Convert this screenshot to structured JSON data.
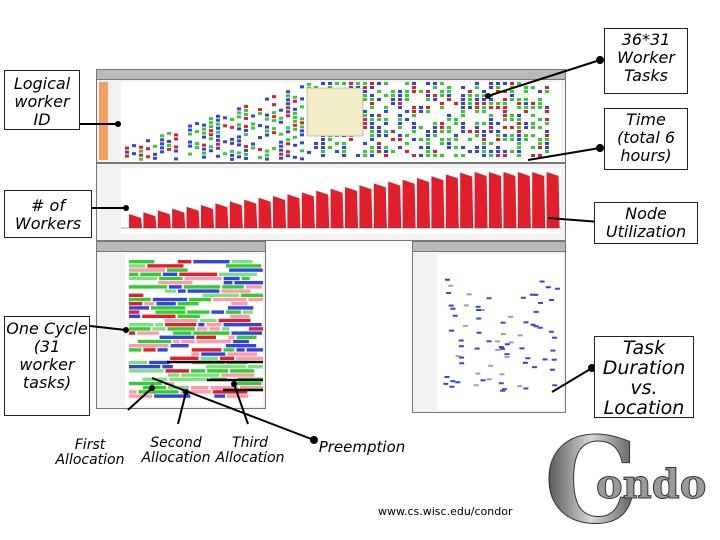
{
  "callouts": {
    "logical_worker_id": "Logical worker ID",
    "num_workers": "# of Workers",
    "one_cycle": "One Cycle (31 worker tasks)",
    "worker_tasks": "36*31 Worker Tasks",
    "time_total": "Time (total 6 hours)",
    "node_utilization": "Node Utilization",
    "task_duration": "Task Duration vs. Location"
  },
  "captions": {
    "first_allocation": "First Allocation",
    "second_allocation": "Second Allocation",
    "third_allocation": "Third Allocation",
    "preemption": "Preemption"
  },
  "url": "www.cs.wisc.edu/condor",
  "logo_text": "ondor",
  "logo_initial": "C",
  "colors": {
    "green": "#33cc33",
    "blue": "#3344dd",
    "red": "#e01e2c",
    "window_bg": "#f2f2f2",
    "orange_strip": "#f0a060"
  }
}
